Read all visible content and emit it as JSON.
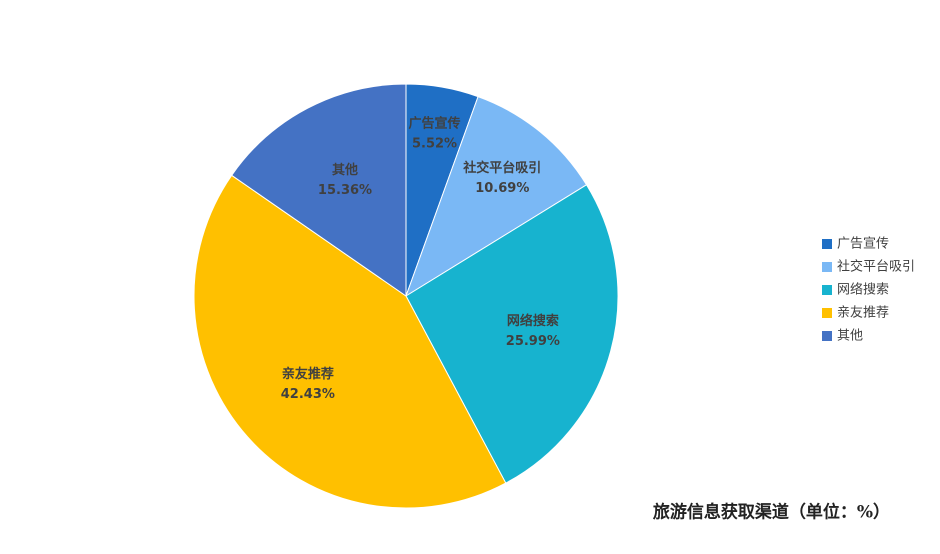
{
  "chart_data": {
    "type": "pie",
    "title": "旅游信息获取渠道（单位：%）",
    "categories": [
      "广告宣传",
      "社交平台吸引",
      "网络搜索",
      "亲友推荐",
      "其他"
    ],
    "values": [
      5.52,
      10.69,
      25.99,
      42.43,
      15.36
    ],
    "value_labels": [
      "5.52%",
      "10.69%",
      "25.99%",
      "42.43%",
      "15.36%"
    ],
    "colors": [
      "#1f6fc5",
      "#7ab8f5",
      "#17b3cf",
      "#ffc000",
      "#4472c4"
    ],
    "legend": "right"
  }
}
